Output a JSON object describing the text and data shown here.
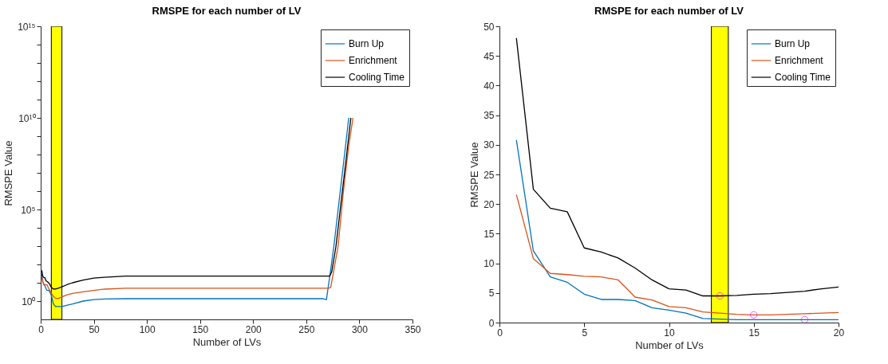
{
  "chart_data": [
    {
      "type": "line",
      "title": "RMSPE for each number of LV",
      "xlabel": "Number of LVs",
      "ylabel": "RMSPE Value",
      "log": "y",
      "xlim": [
        0,
        350
      ],
      "xticks": [
        0,
        50,
        100,
        150,
        200,
        250,
        300,
        350
      ],
      "ylim": [
        0.1,
        1000000000000000
      ],
      "yticks": [
        {
          "value": 1,
          "label": "10⁰"
        },
        {
          "value": 10,
          "label": null
        },
        {
          "value": 100,
          "label": null
        },
        {
          "value": 1000,
          "label": null
        },
        {
          "value": 10000,
          "label": null
        },
        {
          "value": 100000,
          "label": "10⁵"
        },
        {
          "value": 1000000,
          "label": null
        },
        {
          "value": 10000000,
          "label": null
        },
        {
          "value": 100000000,
          "label": null
        },
        {
          "value": 1000000000,
          "label": null
        },
        {
          "value": 10000000000,
          "label": "10¹⁰"
        },
        {
          "value": 100000000000,
          "label": null
        },
        {
          "value": 1000000000000,
          "label": null
        },
        {
          "value": 10000000000000,
          "label": null
        },
        {
          "value": 100000000000000,
          "label": null
        },
        {
          "value": 1000000000000000,
          "label": "10¹⁵"
        }
      ],
      "legend": "top right",
      "grid": false,
      "bands": [
        {
          "axis": "x",
          "from": 10,
          "to": 20,
          "color": "#ffff00"
        }
      ],
      "series": [
        {
          "name": "Burn Up",
          "color": "#0072bd",
          "x": [
            1,
            2,
            3,
            4,
            5,
            6,
            8,
            10,
            12,
            14,
            17,
            20,
            25,
            30,
            40,
            50,
            60,
            80,
            100,
            150,
            200,
            250,
            266,
            269,
            272,
            276,
            280,
            285,
            290
          ],
          "values": [
            30.8,
            12.1,
            7.7,
            6.8,
            4.8,
            3.9,
            3.7,
            2.1,
            0.7,
            0.5,
            0.5,
            0.5,
            0.6,
            0.7,
            1,
            1.2,
            1.3,
            1.35,
            1.35,
            1.35,
            1.35,
            1.35,
            1.35,
            1.2,
            20,
            1000,
            100000,
            30000000,
            10000000000
          ]
        },
        {
          "name": "Enrichment",
          "color": "#d95319",
          "x": [
            1,
            2,
            3,
            4,
            5,
            6,
            8,
            10,
            12,
            14,
            17,
            20,
            25,
            30,
            40,
            50,
            60,
            80,
            100,
            150,
            200,
            250,
            271,
            273,
            276,
            280,
            285,
            290,
            294
          ],
          "values": [
            21.6,
            10.8,
            8.3,
            8.1,
            7.8,
            7.7,
            4.3,
            2.7,
            1.8,
            1.4,
            1.4,
            1.7,
            2.2,
            2.6,
            3.2,
            3.8,
            4.5,
            5,
            5,
            5,
            5,
            5,
            5,
            5.5,
            50,
            1000,
            1000000,
            300000000,
            10000000000
          ]
        },
        {
          "name": "Cooling Time",
          "color": "#000000",
          "x": [
            1,
            2,
            3,
            4,
            5,
            6,
            8,
            10,
            12,
            14,
            17,
            20,
            25,
            30,
            40,
            50,
            60,
            80,
            100,
            150,
            200,
            250,
            272,
            274,
            278,
            282,
            287,
            292
          ],
          "values": [
            48,
            22.5,
            19.3,
            18.7,
            12.6,
            11.9,
            9.2,
            5.7,
            4.5,
            4.6,
            5.1,
            6,
            8,
            10,
            14,
            18,
            20,
            23,
            23,
            23,
            23,
            23,
            23,
            40,
            1000,
            100000,
            30000000,
            10000000000
          ]
        }
      ]
    },
    {
      "type": "line",
      "title": "RMSPE for each number of LV",
      "xlabel": "Number of LVs",
      "ylabel": "RMSPE Value",
      "xlim": [
        0,
        20
      ],
      "xticks": [
        0,
        5,
        10,
        15,
        20
      ],
      "ylim": [
        0,
        50
      ],
      "yticks": [
        0,
        5,
        10,
        15,
        20,
        25,
        30,
        35,
        40,
        45,
        50
      ],
      "legend": "top right",
      "grid": false,
      "bands": [
        {
          "axis": "x",
          "from": 12.5,
          "to": 13.5,
          "color": "#ffff00"
        }
      ],
      "series": [
        {
          "name": "Burn Up",
          "color": "#0072bd",
          "x": [
            1,
            2,
            3,
            4,
            5,
            6,
            7,
            8,
            9,
            10,
            11,
            12,
            13,
            14,
            15,
            16,
            17,
            18,
            19,
            20
          ],
          "values": [
            30.8,
            12.1,
            7.7,
            6.8,
            4.8,
            3.9,
            3.9,
            3.7,
            2.5,
            2.1,
            1.6,
            0.7,
            0.6,
            0.5,
            0.5,
            0.5,
            0.5,
            0.5,
            0.5,
            0.5
          ]
        },
        {
          "name": "Enrichment",
          "color": "#d95319",
          "x": [
            1,
            2,
            3,
            4,
            5,
            6,
            7,
            8,
            9,
            10,
            11,
            12,
            13,
            14,
            15,
            16,
            17,
            18,
            19,
            20
          ],
          "values": [
            21.6,
            10.8,
            8.3,
            8.1,
            7.8,
            7.7,
            7.2,
            4.3,
            3.8,
            2.7,
            2.5,
            1.8,
            1.6,
            1.4,
            1.3,
            1.3,
            1.4,
            1.5,
            1.6,
            1.7
          ]
        },
        {
          "name": "Cooling Time",
          "color": "#000000",
          "x": [
            1,
            2,
            3,
            4,
            5,
            6,
            7,
            8,
            9,
            10,
            11,
            12,
            13,
            14,
            15,
            16,
            17,
            18,
            19,
            20
          ],
          "values": [
            48,
            22.5,
            19.3,
            18.7,
            12.6,
            11.9,
            10.9,
            9.2,
            7.2,
            5.7,
            5.5,
            4.5,
            4.5,
            4.6,
            4.8,
            4.9,
            5.1,
            5.3,
            5.7,
            6
          ]
        },
        {
          "type": "scatter",
          "color": "#ff00ff",
          "marker": "circle",
          "x": [
            13,
            15,
            18
          ],
          "values": [
            4.5,
            1.3,
            0.5
          ]
        }
      ]
    }
  ]
}
